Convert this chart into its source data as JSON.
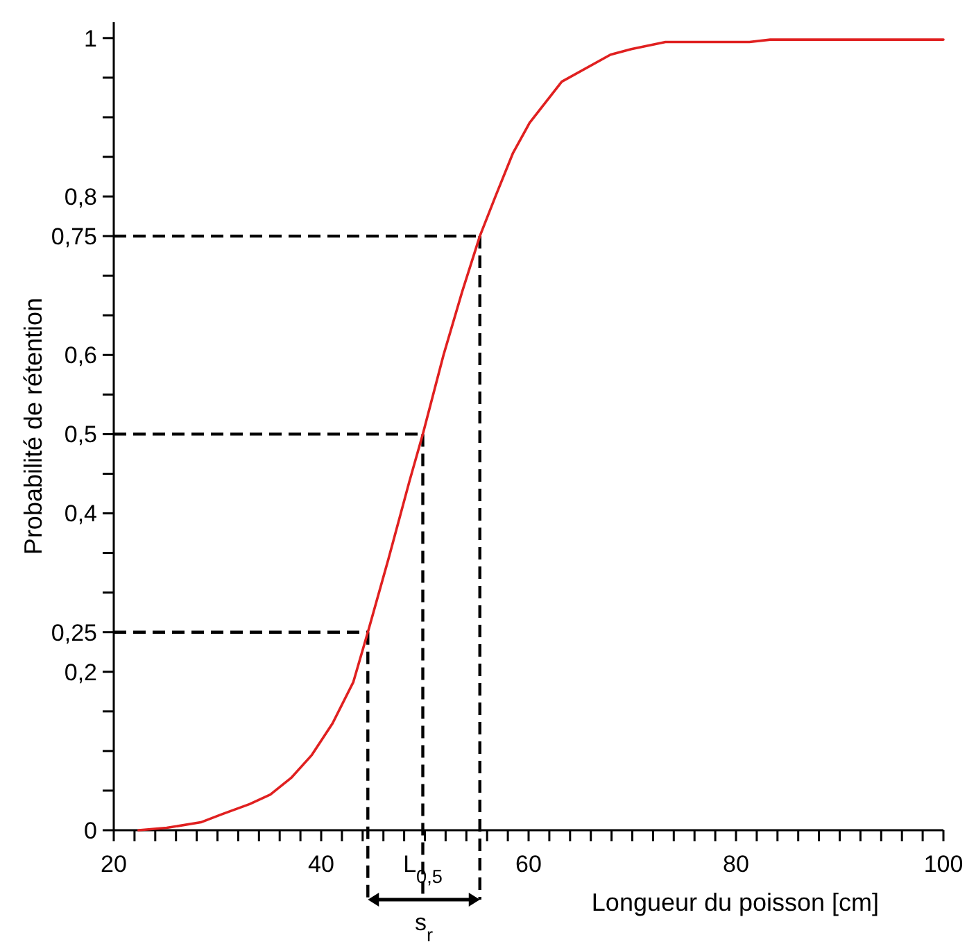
{
  "chart_data": {
    "type": "line",
    "xlabel": "Longueur du poisson [cm]",
    "ylabel": "Probabilité de rétention",
    "xlim": [
      20,
      100
    ],
    "ylim": [
      0,
      1.02
    ],
    "xticks": [
      20,
      {
        "value": 22,
        "label": null
      },
      {
        "value": 24,
        "label": null
      },
      {
        "value": 26,
        "label": null
      },
      {
        "value": 28,
        "label": null
      },
      {
        "value": 30,
        "label": null
      },
      {
        "value": 32,
        "label": null
      },
      {
        "value": 34,
        "label": null
      },
      {
        "value": 36,
        "label": null
      },
      {
        "value": 38,
        "label": null
      },
      40,
      {
        "value": 42,
        "label": null
      },
      {
        "value": 44,
        "label": null
      },
      {
        "value": 46,
        "label": null
      },
      {
        "value": 48,
        "label": null
      },
      {
        "value": 50,
        "label": null
      },
      {
        "value": 52,
        "label": null
      },
      {
        "value": 54,
        "label": null
      },
      {
        "value": 56,
        "label": null
      },
      {
        "value": 58,
        "label": null
      },
      60,
      {
        "value": 62,
        "label": null
      },
      {
        "value": 64,
        "label": null
      },
      {
        "value": 66,
        "label": null
      },
      {
        "value": 68,
        "label": null
      },
      {
        "value": 70,
        "label": null
      },
      {
        "value": 72,
        "label": null
      },
      {
        "value": 74,
        "label": null
      },
      {
        "value": 76,
        "label": null
      },
      {
        "value": 78,
        "label": null
      },
      80,
      {
        "value": 82,
        "label": null
      },
      {
        "value": 84,
        "label": null
      },
      {
        "value": 86,
        "label": null
      },
      {
        "value": 88,
        "label": null
      },
      {
        "value": 90,
        "label": null
      },
      {
        "value": 92,
        "label": null
      },
      {
        "value": 94,
        "label": null
      },
      {
        "value": 96,
        "label": null
      },
      {
        "value": 98,
        "label": null
      },
      100
    ],
    "yticks": [
      0,
      {
        "value": 0.05,
        "label": null
      },
      {
        "value": 0.1,
        "label": null
      },
      {
        "value": 0.15,
        "label": null
      },
      {
        "value": 0.2,
        "label": "0,2"
      },
      {
        "value": 0.25,
        "label": "0,25"
      },
      {
        "value": 0.3,
        "label": null
      },
      {
        "value": 0.35,
        "label": null
      },
      {
        "value": 0.4,
        "label": "0,4"
      },
      {
        "value": 0.45,
        "label": null
      },
      {
        "value": 0.5,
        "label": "0,5"
      },
      {
        "value": 0.55,
        "label": null
      },
      {
        "value": 0.6,
        "label": "0,6"
      },
      {
        "value": 0.65,
        "label": null
      },
      {
        "value": 0.7,
        "label": null
      },
      {
        "value": 0.75,
        "label": "0,75"
      },
      {
        "value": 0.8,
        "label": "0,8"
      },
      {
        "value": 0.85,
        "label": null
      },
      {
        "value": 0.9,
        "label": null
      },
      {
        "value": 0.95,
        "label": null
      },
      1
    ],
    "grid": false,
    "marker": "none",
    "line_style": "solid",
    "series": [
      {
        "color": "#e02020",
        "x": [
          22.4,
          25.1,
          28.4,
          30.4,
          33.1,
          35.1,
          37.1,
          39.1,
          41.1,
          43.1,
          44.5,
          46.5,
          48.5,
          49.8,
          51.8,
          53.6,
          55.3,
          56.8,
          58.5,
          60.1,
          63.2,
          67.9,
          69.9,
          73.2,
          81.3,
          83.3,
          100
        ],
        "values": [
          0,
          0.003,
          0.01,
          0.02,
          0.033,
          0.045,
          0.066,
          0.095,
          0.135,
          0.187,
          0.25,
          0.343,
          0.44,
          0.5,
          0.6,
          0.68,
          0.75,
          0.8,
          0.855,
          0.893,
          0.945,
          0.979,
          0.986,
          0.995,
          0.995,
          0.998,
          0.998
        ]
      }
    ],
    "ref_lines": [
      {
        "axis": "y",
        "value": 0.25,
        "color": "#000000",
        "line_style": "dashed"
      },
      {
        "axis": "y",
        "value": 0.5,
        "color": "#000000",
        "line_style": "dashed"
      },
      {
        "axis": "y",
        "value": 0.75,
        "color": "#000000",
        "line_style": "dashed"
      },
      {
        "axis": "x",
        "value": 44.5,
        "color": "#000000",
        "line_style": "dashed"
      },
      {
        "axis": "x",
        "value": 49.8,
        "color": "#000000",
        "line_style": "dashed"
      },
      {
        "axis": "x",
        "value": 55.3,
        "color": "#000000",
        "line_style": "dashed"
      }
    ],
    "annotations": [
      {
        "text": "L$_{0,5}$",
        "x": 49.8
      },
      "s$_{r}$"
    ]
  }
}
